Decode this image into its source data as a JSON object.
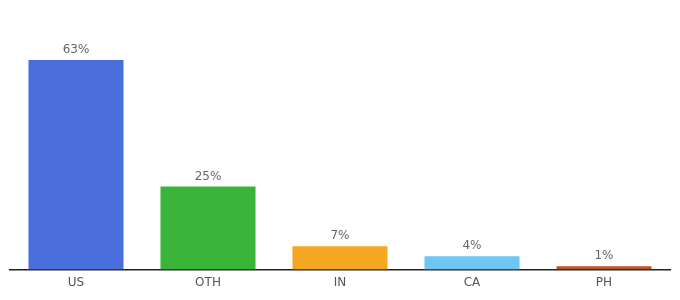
{
  "chart_data": {
    "type": "bar",
    "categories": [
      "US",
      "OTH",
      "IN",
      "CA",
      "PH"
    ],
    "values": [
      63,
      25,
      7,
      4,
      1
    ],
    "value_labels": [
      "63%",
      "25%",
      "7%",
      "4%",
      "1%"
    ],
    "colors": [
      "#4a6fdc",
      "#3ab53a",
      "#f5a623",
      "#6ec6f5",
      "#c0522a"
    ],
    "ylim": [
      0,
      75
    ],
    "data_labels": true,
    "tick_labels": "x",
    "grid": false
  }
}
